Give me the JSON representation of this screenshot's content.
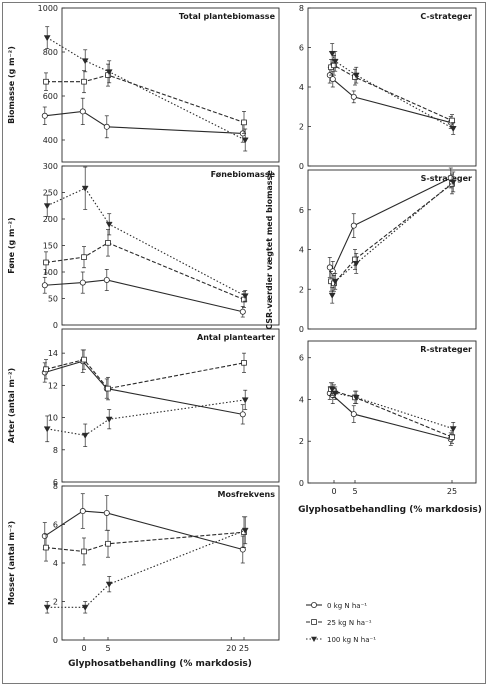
{
  "colors": {
    "ink": "#2a2a2a",
    "grid": "#8a8a8a"
  },
  "figure": {
    "left_xlabel": "Glyphosatbehandling (% markdosis)",
    "right_xlabel": "Glyphosatbehandling (% markdosis)",
    "right_ylabel": "CSR-værdier vægtet med biomasse"
  },
  "legend": [
    {
      "label": "0 kg N ha⁻¹",
      "marker": "circle-open",
      "dash": "solid"
    },
    {
      "label": "25 kg N ha⁻¹",
      "marker": "square-open",
      "dash": "dashed"
    },
    {
      "label": "100 kg N ha⁻¹",
      "marker": "triangle-down-filled",
      "dash": "dotted"
    }
  ],
  "chart_data": [
    {
      "type": "line",
      "title": "Total plantebiomasse",
      "ylabel": "Biomasse (g m⁻²)",
      "x": [
        -1,
        0,
        5,
        25
      ],
      "ylim": [
        300,
        1000
      ],
      "yticks": [
        400,
        600,
        800,
        1000
      ],
      "series": [
        {
          "name": "0 kg N ha⁻¹",
          "values": [
            510,
            530,
            460,
            430
          ],
          "err": [
            40,
            60,
            50,
            40
          ]
        },
        {
          "name": "25 kg N ha⁻¹",
          "values": [
            665,
            665,
            695,
            480
          ],
          "err": [
            40,
            50,
            50,
            50
          ]
        },
        {
          "name": "100 kg N ha⁻¹",
          "values": [
            865,
            760,
            710,
            400
          ],
          "err": [
            50,
            50,
            50,
            50
          ]
        }
      ]
    },
    {
      "type": "line",
      "title": "Fønebiomasse",
      "ylabel": "Føne (g m⁻²)",
      "x": [
        -1,
        0,
        5,
        25
      ],
      "ylim": [
        0,
        300
      ],
      "yticks": [
        0,
        50,
        100,
        150,
        200,
        250,
        300
      ],
      "series": [
        {
          "name": "0 kg N ha⁻¹",
          "values": [
            75,
            80,
            85,
            25
          ],
          "err": [
            15,
            20,
            20,
            10
          ]
        },
        {
          "name": "25 kg N ha⁻¹",
          "values": [
            118,
            128,
            155,
            48
          ],
          "err": [
            20,
            20,
            25,
            15
          ]
        },
        {
          "name": "100 kg N ha⁻¹",
          "values": [
            225,
            258,
            190,
            55
          ],
          "err": [
            20,
            40,
            20,
            10
          ]
        }
      ]
    },
    {
      "type": "line",
      "title": "Antal plantearter",
      "ylabel": "Arter (antal m⁻²)",
      "x": [
        -1,
        0,
        5,
        25
      ],
      "ylim": [
        6,
        15.5
      ],
      "yticks": [
        6,
        8,
        10,
        12,
        14
      ],
      "series": [
        {
          "name": "0 kg N ha⁻¹",
          "values": [
            12.8,
            13.5,
            11.8,
            10.2
          ],
          "err": [
            0.6,
            0.7,
            0.6,
            0.6
          ]
        },
        {
          "name": "25 kg N ha⁻¹",
          "values": [
            13.0,
            13.6,
            11.8,
            13.4
          ],
          "err": [
            0.6,
            0.6,
            0.7,
            0.6
          ]
        },
        {
          "name": "100 kg N ha⁻¹",
          "values": [
            9.3,
            8.9,
            9.9,
            11.1
          ],
          "err": [
            0.8,
            0.7,
            0.6,
            0.6
          ]
        }
      ]
    },
    {
      "type": "line",
      "title": "Mosfrekvens",
      "ylabel": "Mosser (antal m⁻²)",
      "x": [
        -1,
        0,
        5,
        25
      ],
      "ylim": [
        0,
        8
      ],
      "yticks": [
        0,
        2,
        4,
        6,
        8
      ],
      "series": [
        {
          "name": "0 kg N ha⁻¹",
          "values": [
            5.4,
            6.7,
            6.6,
            4.7
          ],
          "err": [
            0.7,
            0.9,
            0.9,
            0.7
          ]
        },
        {
          "name": "25 kg N ha⁻¹",
          "values": [
            4.8,
            4.6,
            5.0,
            5.6
          ],
          "err": [
            0.7,
            0.7,
            0.7,
            0.8
          ]
        },
        {
          "name": "100 kg N ha⁻¹",
          "values": [
            1.7,
            1.7,
            2.9,
            5.7
          ],
          "err": [
            0.3,
            0.3,
            0.4,
            0.7
          ]
        }
      ]
    },
    {
      "type": "line",
      "title": "C-strateger",
      "ylabel": "",
      "x": [
        -1,
        0,
        5,
        25
      ],
      "ylim": [
        0,
        8
      ],
      "yticks": [
        0,
        2,
        4,
        6,
        8
      ],
      "series": [
        {
          "name": "0 kg N ha⁻¹",
          "values": [
            4.6,
            4.4,
            3.5,
            2.2
          ],
          "err": [
            0.4,
            0.4,
            0.3,
            0.3
          ]
        },
        {
          "name": "25 kg N ha⁻¹",
          "values": [
            5.0,
            5.1,
            4.5,
            2.3
          ],
          "err": [
            0.4,
            0.5,
            0.4,
            0.3
          ]
        },
        {
          "name": "100 kg N ha⁻¹",
          "values": [
            5.7,
            5.3,
            4.6,
            1.9
          ],
          "err": [
            0.5,
            0.5,
            0.4,
            0.3
          ]
        }
      ]
    },
    {
      "type": "line",
      "title": "S-strateger",
      "ylabel": "",
      "x": [
        -1,
        0,
        5,
        25
      ],
      "ylim": [
        0,
        8
      ],
      "yticks": [
        0,
        2,
        4,
        6
      ],
      "series": [
        {
          "name": "0 kg N ha⁻¹",
          "values": [
            3.1,
            2.9,
            5.2,
            7.6
          ],
          "err": [
            0.5,
            0.5,
            0.6,
            0.5
          ]
        },
        {
          "name": "25 kg N ha⁻¹",
          "values": [
            2.4,
            2.3,
            3.5,
            7.3
          ],
          "err": [
            0.5,
            0.4,
            0.5,
            0.5
          ]
        },
        {
          "name": "100 kg N ha⁻¹",
          "values": [
            1.7,
            2.4,
            3.3,
            7.4
          ],
          "err": [
            0.4,
            0.4,
            0.5,
            0.5
          ]
        }
      ]
    },
    {
      "type": "line",
      "title": "R-strateger",
      "ylabel": "",
      "x": [
        -1,
        0,
        5,
        25
      ],
      "ylim": [
        0,
        6.8
      ],
      "yticks": [
        0,
        2,
        4,
        6
      ],
      "series": [
        {
          "name": "0 kg N ha⁻¹",
          "values": [
            4.3,
            4.2,
            3.3,
            2.1
          ],
          "err": [
            0.3,
            0.4,
            0.4,
            0.3
          ]
        },
        {
          "name": "25 kg N ha⁻¹",
          "values": [
            4.5,
            4.4,
            4.1,
            2.2
          ],
          "err": [
            0.3,
            0.3,
            0.3,
            0.3
          ]
        },
        {
          "name": "100 kg N ha⁻¹",
          "values": [
            4.5,
            4.3,
            4.1,
            2.6
          ],
          "err": [
            0.3,
            0.3,
            0.3,
            0.3
          ]
        }
      ]
    }
  ]
}
